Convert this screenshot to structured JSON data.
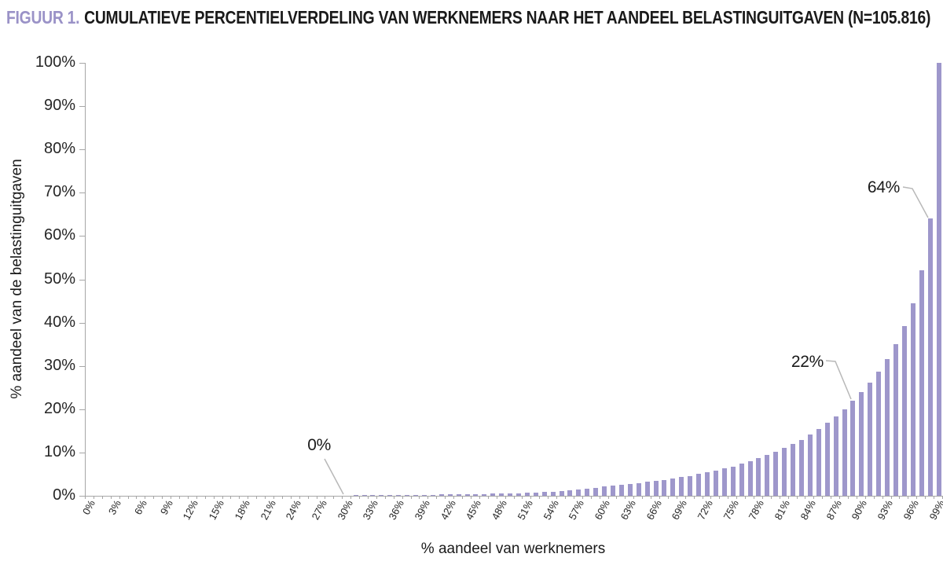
{
  "figure": {
    "title_label": "FIGUUR 1.",
    "title_text": "CUMULATIEVE PERCENTIELVERDELING VAN WERKNEMERS NAAR HET AANDEEL BELASTINGUITGAVEN (N=105.816)"
  },
  "colors": {
    "accent_purple": "#9a92c7",
    "bar_purple": "#9e97cb",
    "axis_gray": "#a6a6a6",
    "leader_gray": "#b8b8b8",
    "text_black": "#1a1a1a"
  },
  "chart_data": {
    "type": "bar",
    "title": "FIGUUR 1. CUMULATIEVE PERCENTIELVERDELING VAN WERKNEMERS NAAR HET AANDEEL BELASTINGUITGAVEN (N=105.816)",
    "xlabel": "% aandeel van werknemers",
    "ylabel": "% aandeel van de belastinguitgaven",
    "ylim": [
      0,
      100
    ],
    "grid": false,
    "legend_position": "none",
    "y_tick_labels": [
      "0%",
      "10%",
      "20%",
      "30%",
      "40%",
      "50%",
      "60%",
      "70%",
      "80%",
      "90%",
      "100%"
    ],
    "x_tick_step": 3,
    "x_tick_labels": [
      "0%",
      "3%",
      "6%",
      "9%",
      "12%",
      "15%",
      "18%",
      "21%",
      "24%",
      "27%",
      "30%",
      "33%",
      "36%",
      "39%",
      "42%",
      "45%",
      "48%",
      "51%",
      "54%",
      "57%",
      "60%",
      "63%",
      "66%",
      "69%",
      "72%",
      "75%",
      "78%",
      "81%",
      "84%",
      "87%",
      "90%",
      "93%",
      "96%",
      "99%"
    ],
    "values": [
      0,
      0,
      0,
      0,
      0,
      0,
      0,
      0,
      0,
      0,
      0,
      0,
      0,
      0,
      0,
      0,
      0,
      0,
      0,
      0,
      0,
      0,
      0,
      0,
      0,
      0,
      0,
      0,
      0,
      0,
      0,
      0.1,
      0.1,
      0.1,
      0.1,
      0.1,
      0.2,
      0.2,
      0.2,
      0.2,
      0.2,
      0.3,
      0.3,
      0.3,
      0.3,
      0.4,
      0.4,
      0.5,
      0.5,
      0.6,
      0.6,
      0.7,
      0.8,
      0.9,
      1.0,
      1.1,
      1.3,
      1.5,
      1.7,
      1.9,
      2.1,
      2.3,
      2.5,
      2.7,
      2.9,
      3.2,
      3.4,
      3.7,
      4.0,
      4.3,
      4.6,
      5.0,
      5.4,
      5.8,
      6.3,
      6.8,
      7.4,
      8.0,
      8.7,
      9.4,
      10.2,
      11.0,
      11.9,
      12.9,
      14.1,
      15.4,
      16.8,
      18.3,
      20.0,
      22.0,
      24.0,
      26.2,
      28.6,
      31.5,
      35.0,
      39.2,
      44.5,
      52.0,
      64.0,
      100.0
    ],
    "annotations": [
      {
        "bar_index": 30,
        "label": "0%"
      },
      {
        "bar_index": 89,
        "label": "22%"
      },
      {
        "bar_index": 98,
        "label": "64%"
      }
    ]
  }
}
